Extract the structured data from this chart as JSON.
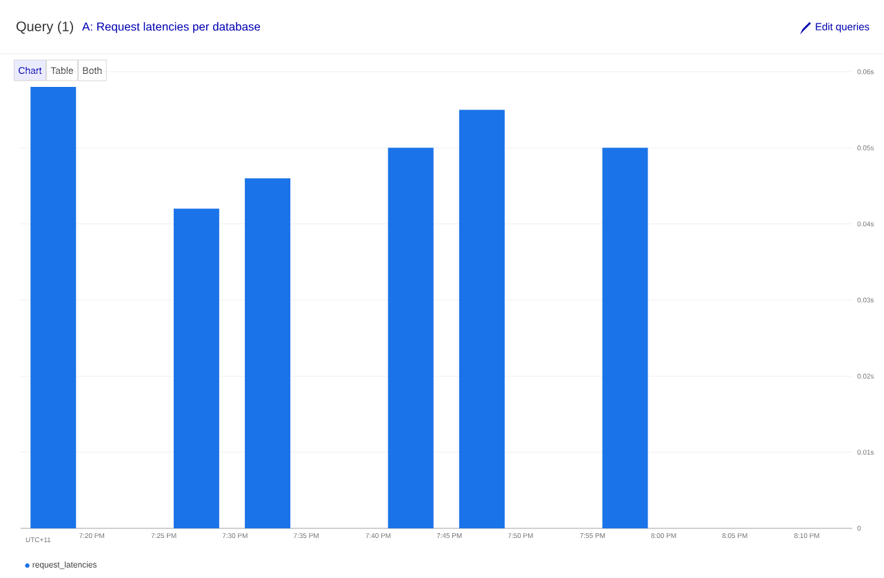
{
  "chart_data": {
    "type": "bar",
    "title": "Query (1)",
    "subtitle": "A: Request latencies per database",
    "xlabel": "UTC+11",
    "annotations": [
      "Edit queries",
      "Chart",
      "Table",
      "Both"
    ],
    "x": [
      19.288,
      19.455,
      19.538,
      19.705,
      19.788,
      19.955
    ],
    "series": [
      {
        "name": "request_latencies",
        "color": "#1a73e8",
        "values": [
          0.058,
          0.042,
          0.046,
          0.05,
          0.055,
          0.05
        ]
      }
    ],
    "xlim": [
      19.25,
      20.22
    ],
    "xticks": [
      {
        "value": 19.333,
        "label": "7:20 PM"
      },
      {
        "value": 19.417,
        "label": "7:25 PM"
      },
      {
        "value": 19.5,
        "label": "7:30 PM"
      },
      {
        "value": 19.583,
        "label": "7:35 PM"
      },
      {
        "value": 19.667,
        "label": "7:40 PM"
      },
      {
        "value": 19.75,
        "label": "7:45 PM"
      },
      {
        "value": 19.833,
        "label": "7:50 PM"
      },
      {
        "value": 19.917,
        "label": "7:55 PM"
      },
      {
        "value": 20.0,
        "label": "8:00 PM"
      },
      {
        "value": 20.083,
        "label": "8:05 PM"
      },
      {
        "value": 20.167,
        "label": "8:10 PM"
      }
    ],
    "ylim": [
      0,
      0.06
    ],
    "yticks": [
      0,
      {
        "value": 0.01,
        "label": "0.01s"
      },
      {
        "value": 0.02,
        "label": "0.02s"
      },
      {
        "value": 0.03,
        "label": "0.03s"
      },
      {
        "value": 0.04,
        "label": "0.04s"
      },
      {
        "value": 0.05,
        "label": "0.05s"
      },
      {
        "value": 0.06,
        "label": "0.06s"
      }
    ],
    "grid": "y",
    "legend": "bottom left"
  }
}
